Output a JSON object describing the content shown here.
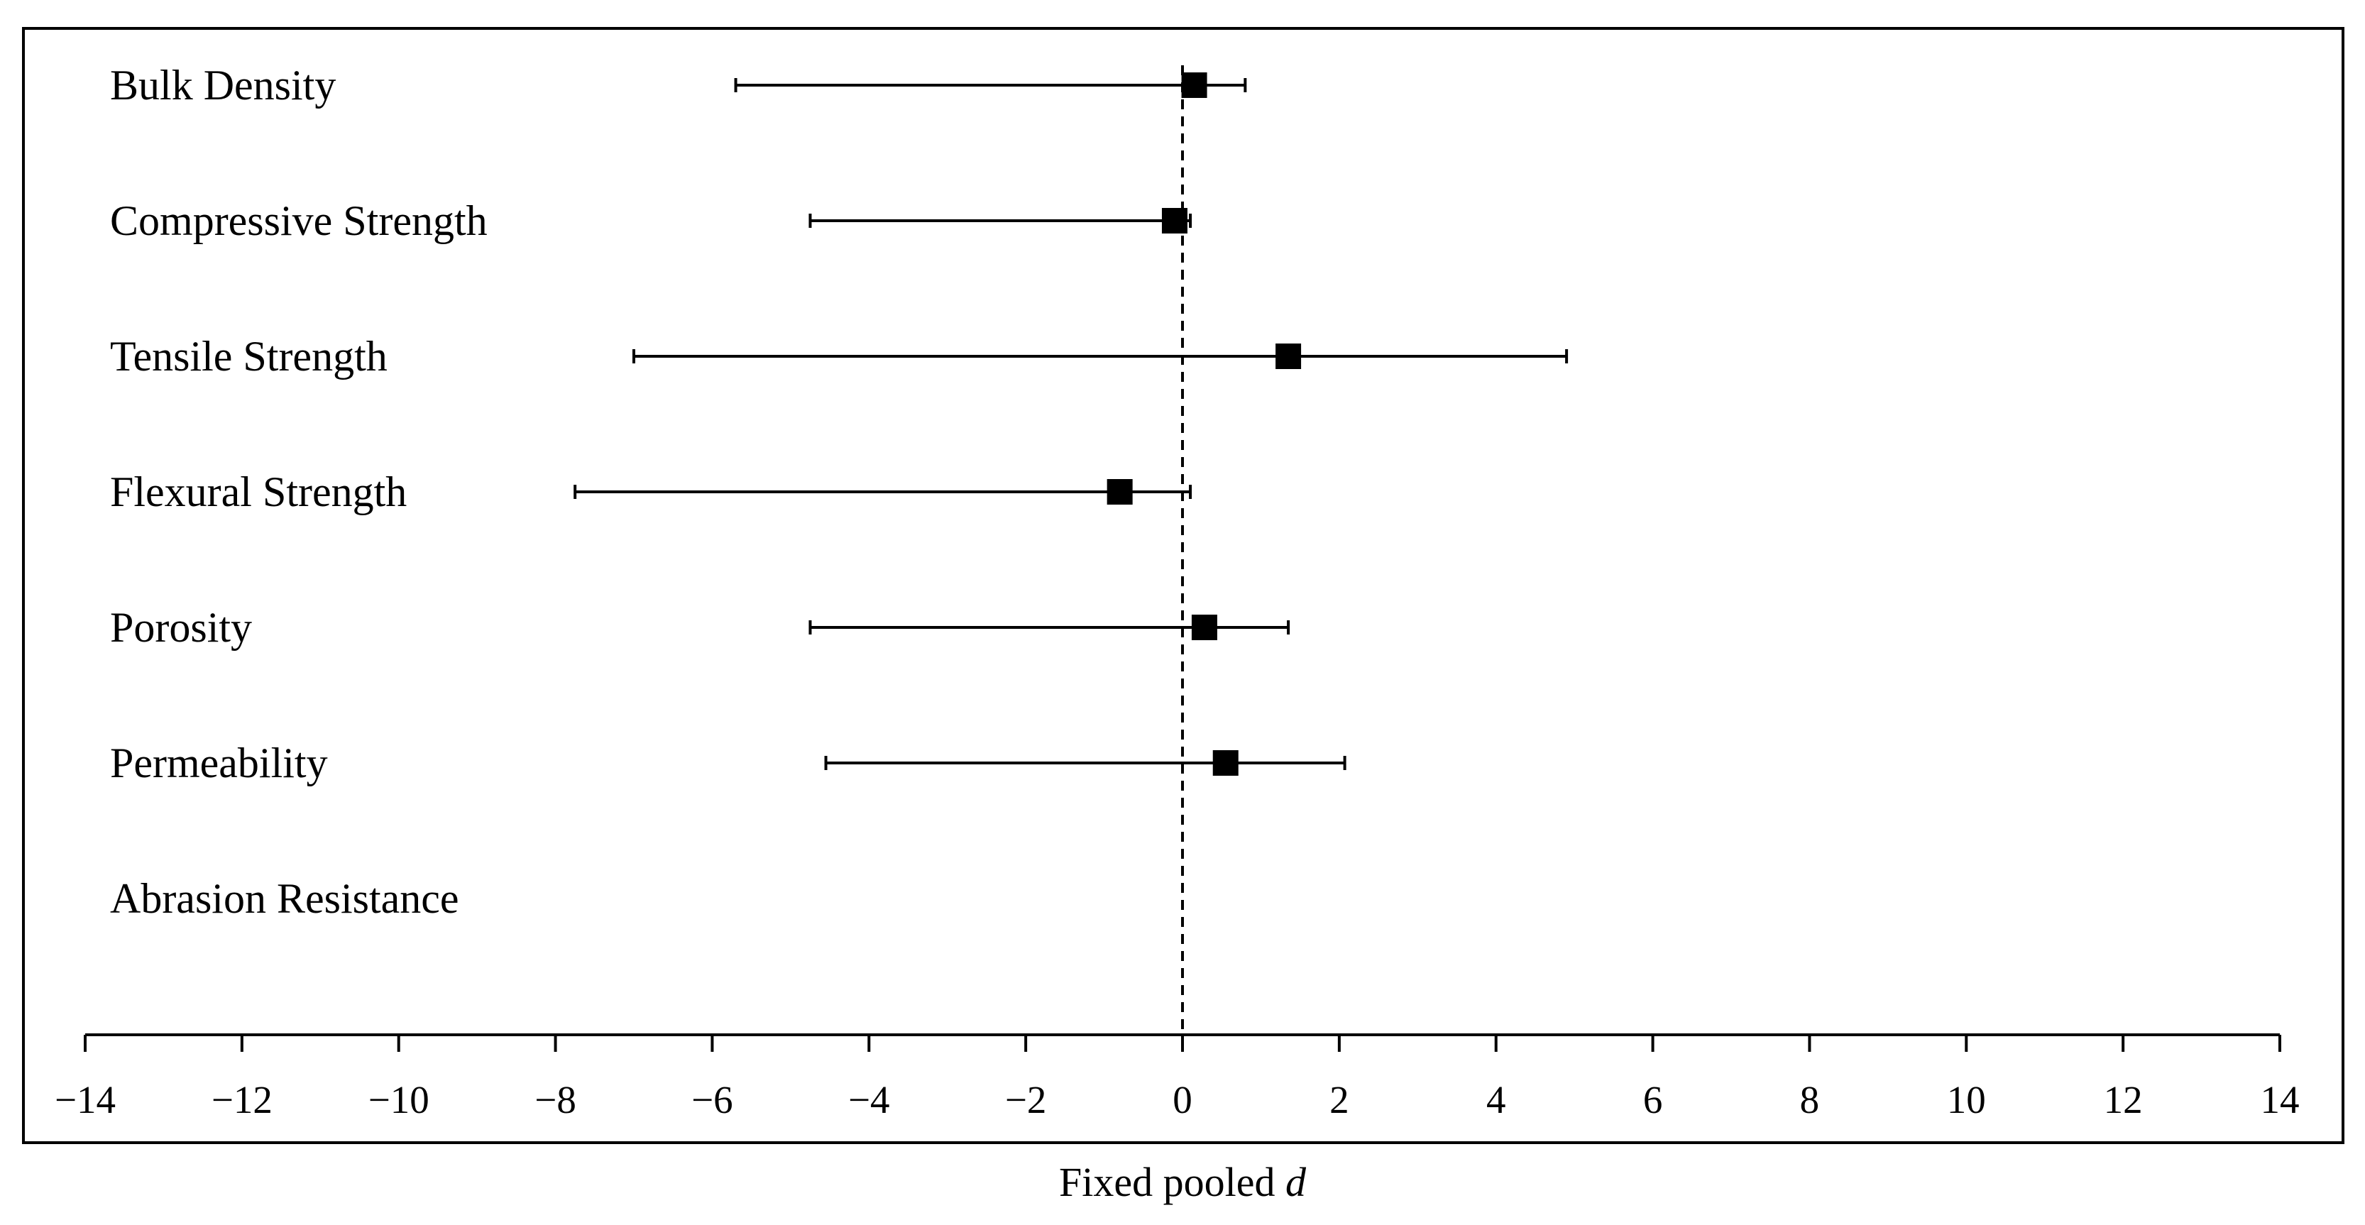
{
  "chart_data": {
    "type": "forest",
    "xlabel_text": "Fixed pooled ",
    "xlabel_var": "d",
    "xlim": [
      -14,
      14
    ],
    "xticks": [
      -14,
      -12,
      -10,
      -8,
      -6,
      -4,
      -2,
      0,
      2,
      4,
      6,
      8,
      10,
      12,
      14
    ],
    "xtick_labels": [
      "−14",
      "−12",
      "−10",
      "−8",
      "−6",
      "−4",
      "−2",
      "0",
      "2",
      "4",
      "6",
      "8",
      "10",
      "12",
      "14"
    ],
    "reference_x": 0,
    "grid": false,
    "rows": [
      {
        "label": "Bulk Density",
        "estimate": 0.15,
        "lower": -5.7,
        "upper": 0.8
      },
      {
        "label": "Compressive Strength",
        "estimate": -0.1,
        "lower": -4.75,
        "upper": 0.1
      },
      {
        "label": "Tensile Strength",
        "estimate": 1.35,
        "lower": -7.0,
        "upper": 4.9
      },
      {
        "label": "Flexural Strength",
        "estimate": -0.8,
        "lower": -7.75,
        "upper": 0.1
      },
      {
        "label": "Porosity",
        "estimate": 0.28,
        "lower": -4.75,
        "upper": 1.35
      },
      {
        "label": "Permeability",
        "estimate": 0.55,
        "lower": -4.55,
        "upper": 2.07
      },
      {
        "label": "Abrasion Resistance",
        "estimate": null,
        "lower": null,
        "upper": null
      }
    ]
  }
}
